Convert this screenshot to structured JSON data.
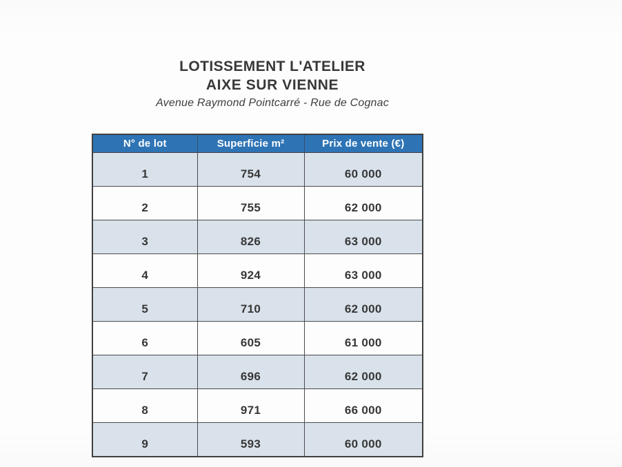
{
  "page": {
    "title_line1": "LOTISSEMENT L'ATELIER",
    "title_line2": "AIXE SUR VIENNE",
    "subtitle": "Avenue Raymond Pointcarré - Rue de Cognac"
  },
  "table": {
    "columns": [
      "N° de lot",
      "Superficie m²",
      "Prix de vente (€)"
    ],
    "rows": [
      {
        "lot": "1",
        "superficie": "754",
        "prix": "60 000"
      },
      {
        "lot": "2",
        "superficie": "755",
        "prix": "62 000"
      },
      {
        "lot": "3",
        "superficie": "826",
        "prix": "63 000"
      },
      {
        "lot": "4",
        "superficie": "924",
        "prix": "63 000"
      },
      {
        "lot": "5",
        "superficie": "710",
        "prix": "62 000"
      },
      {
        "lot": "6",
        "superficie": "605",
        "prix": "61 000"
      },
      {
        "lot": "7",
        "superficie": "696",
        "prix": "62 000"
      },
      {
        "lot": "8",
        "superficie": "971",
        "prix": "66 000"
      },
      {
        "lot": "9",
        "superficie": "593",
        "prix": "60 000"
      }
    ]
  },
  "colors": {
    "header_bg": "#2e74b5",
    "header_text": "#ffffff",
    "band_bg": "#d9e2eb",
    "border": "#4a4a4a",
    "text": "#373737"
  }
}
